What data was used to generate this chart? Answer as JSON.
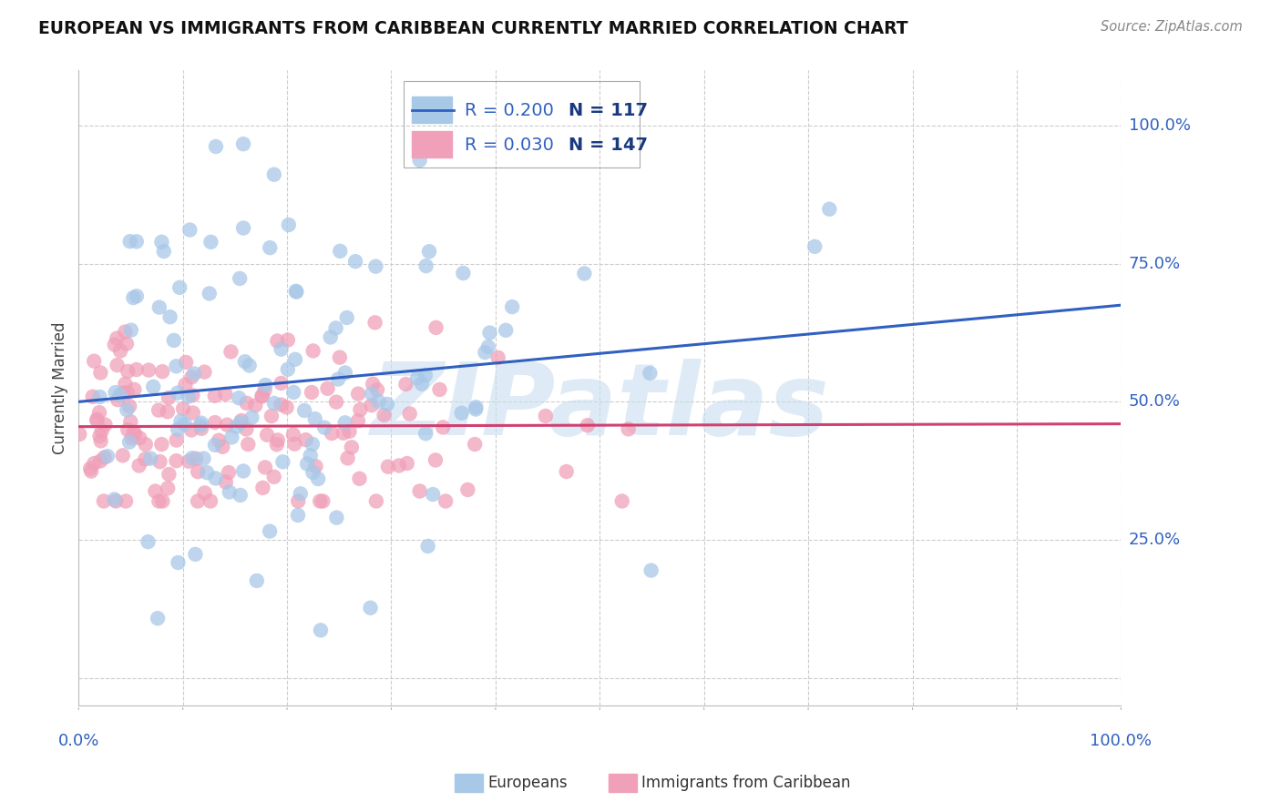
{
  "title": "EUROPEAN VS IMMIGRANTS FROM CARIBBEAN CURRENTLY MARRIED CORRELATION CHART",
  "source": "Source: ZipAtlas.com",
  "ylabel": "Currently Married",
  "xlim": [
    0.0,
    1.0
  ],
  "ylim": [
    -0.05,
    1.1
  ],
  "blue_R": 0.2,
  "blue_N": 117,
  "pink_R": 0.03,
  "pink_N": 147,
  "blue_color": "#a8c8e8",
  "pink_color": "#f0a0b8",
  "blue_line_color": "#3060c0",
  "pink_line_color": "#d04070",
  "axis_label_color": "#3060c0",
  "title_color": "#111111",
  "source_color": "#888888",
  "watermark_text": "ZIPatlas",
  "watermark_color": "#c8dff0",
  "background_color": "#ffffff",
  "grid_color": "#cccccc",
  "ytick_labels": [
    "25.0%",
    "50.0%",
    "75.0%",
    "100.0%"
  ],
  "ytick_values": [
    0.25,
    0.5,
    0.75,
    1.0
  ],
  "blue_trend_start": 0.5,
  "blue_trend_end": 0.675,
  "pink_trend_start": 0.455,
  "pink_trend_end": 0.46
}
